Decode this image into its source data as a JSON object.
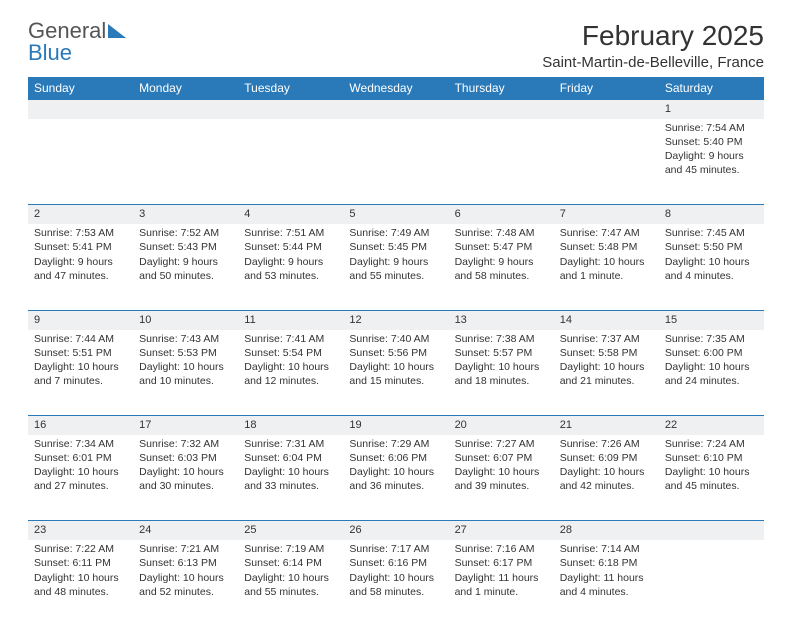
{
  "logo": {
    "word1": "General",
    "word2": "Blue"
  },
  "title": "February 2025",
  "location": "Saint-Martin-de-Belleville, France",
  "colors": {
    "header_bg": "#2a7ab9",
    "header_fg": "#ffffff",
    "daynum_bg": "#eef0f2",
    "border": "#2a7ab9",
    "text": "#333333",
    "page_bg": "#ffffff"
  },
  "columns": [
    "Sunday",
    "Monday",
    "Tuesday",
    "Wednesday",
    "Thursday",
    "Friday",
    "Saturday"
  ],
  "weeks": [
    {
      "nums": [
        "",
        "",
        "",
        "",
        "",
        "",
        "1"
      ],
      "cells": [
        "",
        "",
        "",
        "",
        "",
        "",
        "Sunrise: 7:54 AM\nSunset: 5:40 PM\nDaylight: 9 hours and 45 minutes."
      ]
    },
    {
      "nums": [
        "2",
        "3",
        "4",
        "5",
        "6",
        "7",
        "8"
      ],
      "cells": [
        "Sunrise: 7:53 AM\nSunset: 5:41 PM\nDaylight: 9 hours and 47 minutes.",
        "Sunrise: 7:52 AM\nSunset: 5:43 PM\nDaylight: 9 hours and 50 minutes.",
        "Sunrise: 7:51 AM\nSunset: 5:44 PM\nDaylight: 9 hours and 53 minutes.",
        "Sunrise: 7:49 AM\nSunset: 5:45 PM\nDaylight: 9 hours and 55 minutes.",
        "Sunrise: 7:48 AM\nSunset: 5:47 PM\nDaylight: 9 hours and 58 minutes.",
        "Sunrise: 7:47 AM\nSunset: 5:48 PM\nDaylight: 10 hours and 1 minute.",
        "Sunrise: 7:45 AM\nSunset: 5:50 PM\nDaylight: 10 hours and 4 minutes."
      ]
    },
    {
      "nums": [
        "9",
        "10",
        "11",
        "12",
        "13",
        "14",
        "15"
      ],
      "cells": [
        "Sunrise: 7:44 AM\nSunset: 5:51 PM\nDaylight: 10 hours and 7 minutes.",
        "Sunrise: 7:43 AM\nSunset: 5:53 PM\nDaylight: 10 hours and 10 minutes.",
        "Sunrise: 7:41 AM\nSunset: 5:54 PM\nDaylight: 10 hours and 12 minutes.",
        "Sunrise: 7:40 AM\nSunset: 5:56 PM\nDaylight: 10 hours and 15 minutes.",
        "Sunrise: 7:38 AM\nSunset: 5:57 PM\nDaylight: 10 hours and 18 minutes.",
        "Sunrise: 7:37 AM\nSunset: 5:58 PM\nDaylight: 10 hours and 21 minutes.",
        "Sunrise: 7:35 AM\nSunset: 6:00 PM\nDaylight: 10 hours and 24 minutes."
      ]
    },
    {
      "nums": [
        "16",
        "17",
        "18",
        "19",
        "20",
        "21",
        "22"
      ],
      "cells": [
        "Sunrise: 7:34 AM\nSunset: 6:01 PM\nDaylight: 10 hours and 27 minutes.",
        "Sunrise: 7:32 AM\nSunset: 6:03 PM\nDaylight: 10 hours and 30 minutes.",
        "Sunrise: 7:31 AM\nSunset: 6:04 PM\nDaylight: 10 hours and 33 minutes.",
        "Sunrise: 7:29 AM\nSunset: 6:06 PM\nDaylight: 10 hours and 36 minutes.",
        "Sunrise: 7:27 AM\nSunset: 6:07 PM\nDaylight: 10 hours and 39 minutes.",
        "Sunrise: 7:26 AM\nSunset: 6:09 PM\nDaylight: 10 hours and 42 minutes.",
        "Sunrise: 7:24 AM\nSunset: 6:10 PM\nDaylight: 10 hours and 45 minutes."
      ]
    },
    {
      "nums": [
        "23",
        "24",
        "25",
        "26",
        "27",
        "28",
        ""
      ],
      "cells": [
        "Sunrise: 7:22 AM\nSunset: 6:11 PM\nDaylight: 10 hours and 48 minutes.",
        "Sunrise: 7:21 AM\nSunset: 6:13 PM\nDaylight: 10 hours and 52 minutes.",
        "Sunrise: 7:19 AM\nSunset: 6:14 PM\nDaylight: 10 hours and 55 minutes.",
        "Sunrise: 7:17 AM\nSunset: 6:16 PM\nDaylight: 10 hours and 58 minutes.",
        "Sunrise: 7:16 AM\nSunset: 6:17 PM\nDaylight: 11 hours and 1 minute.",
        "Sunrise: 7:14 AM\nSunset: 6:18 PM\nDaylight: 11 hours and 4 minutes.",
        ""
      ]
    }
  ]
}
